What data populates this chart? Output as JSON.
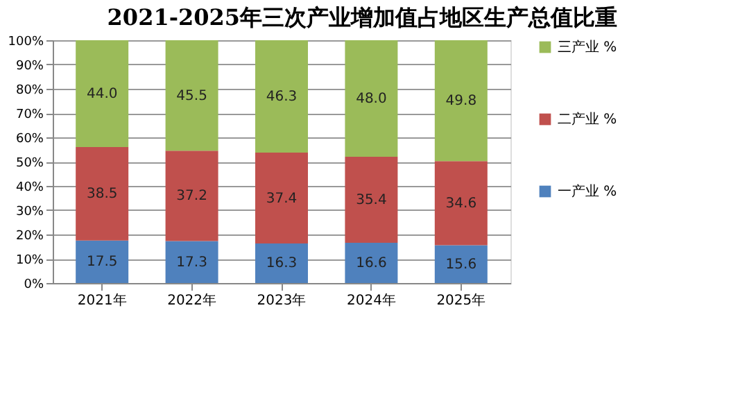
{
  "chart_data": {
    "type": "bar",
    "title": "2021-2025年三次产业增加值占地区生产总值比重",
    "categories": [
      "2021年",
      "2022年",
      "2023年",
      "2024年",
      "2025年"
    ],
    "stacked": true,
    "series": [
      {
        "name": "一产业 %",
        "color": "#4f81bd",
        "values": [
          17.5,
          17.3,
          16.3,
          16.6,
          15.6
        ],
        "value_labels": [
          "17.5",
          "17.3",
          "16.3",
          "16.6",
          "15.6"
        ]
      },
      {
        "name": "二产业 %",
        "color": "#c0504d",
        "values": [
          38.5,
          37.2,
          37.4,
          35.4,
          34.6
        ],
        "value_labels": [
          "38.5",
          "37.2",
          "37.4",
          "35.4",
          "34.6"
        ]
      },
      {
        "name": "三产业 %",
        "color": "#9bbb59",
        "values": [
          44.0,
          45.5,
          46.3,
          48.0,
          49.8
        ],
        "value_labels": [
          "44.0",
          "45.5",
          "46.3",
          "48.0",
          "49.8"
        ]
      }
    ],
    "ylim": [
      0,
      100
    ],
    "yticks": [
      {
        "value": 0,
        "label": "0%"
      },
      {
        "value": 10,
        "label": "10%"
      },
      {
        "value": 20,
        "label": "20%"
      },
      {
        "value": 30,
        "label": "30%"
      },
      {
        "value": 40,
        "label": "40%"
      },
      {
        "value": 50,
        "label": "50%"
      },
      {
        "value": 60,
        "label": "60%"
      },
      {
        "value": 70,
        "label": "70%"
      },
      {
        "value": 80,
        "label": "80%"
      },
      {
        "value": 90,
        "label": "90%"
      },
      {
        "value": 100,
        "label": "100%"
      }
    ],
    "grid": "y",
    "legend": "right"
  }
}
